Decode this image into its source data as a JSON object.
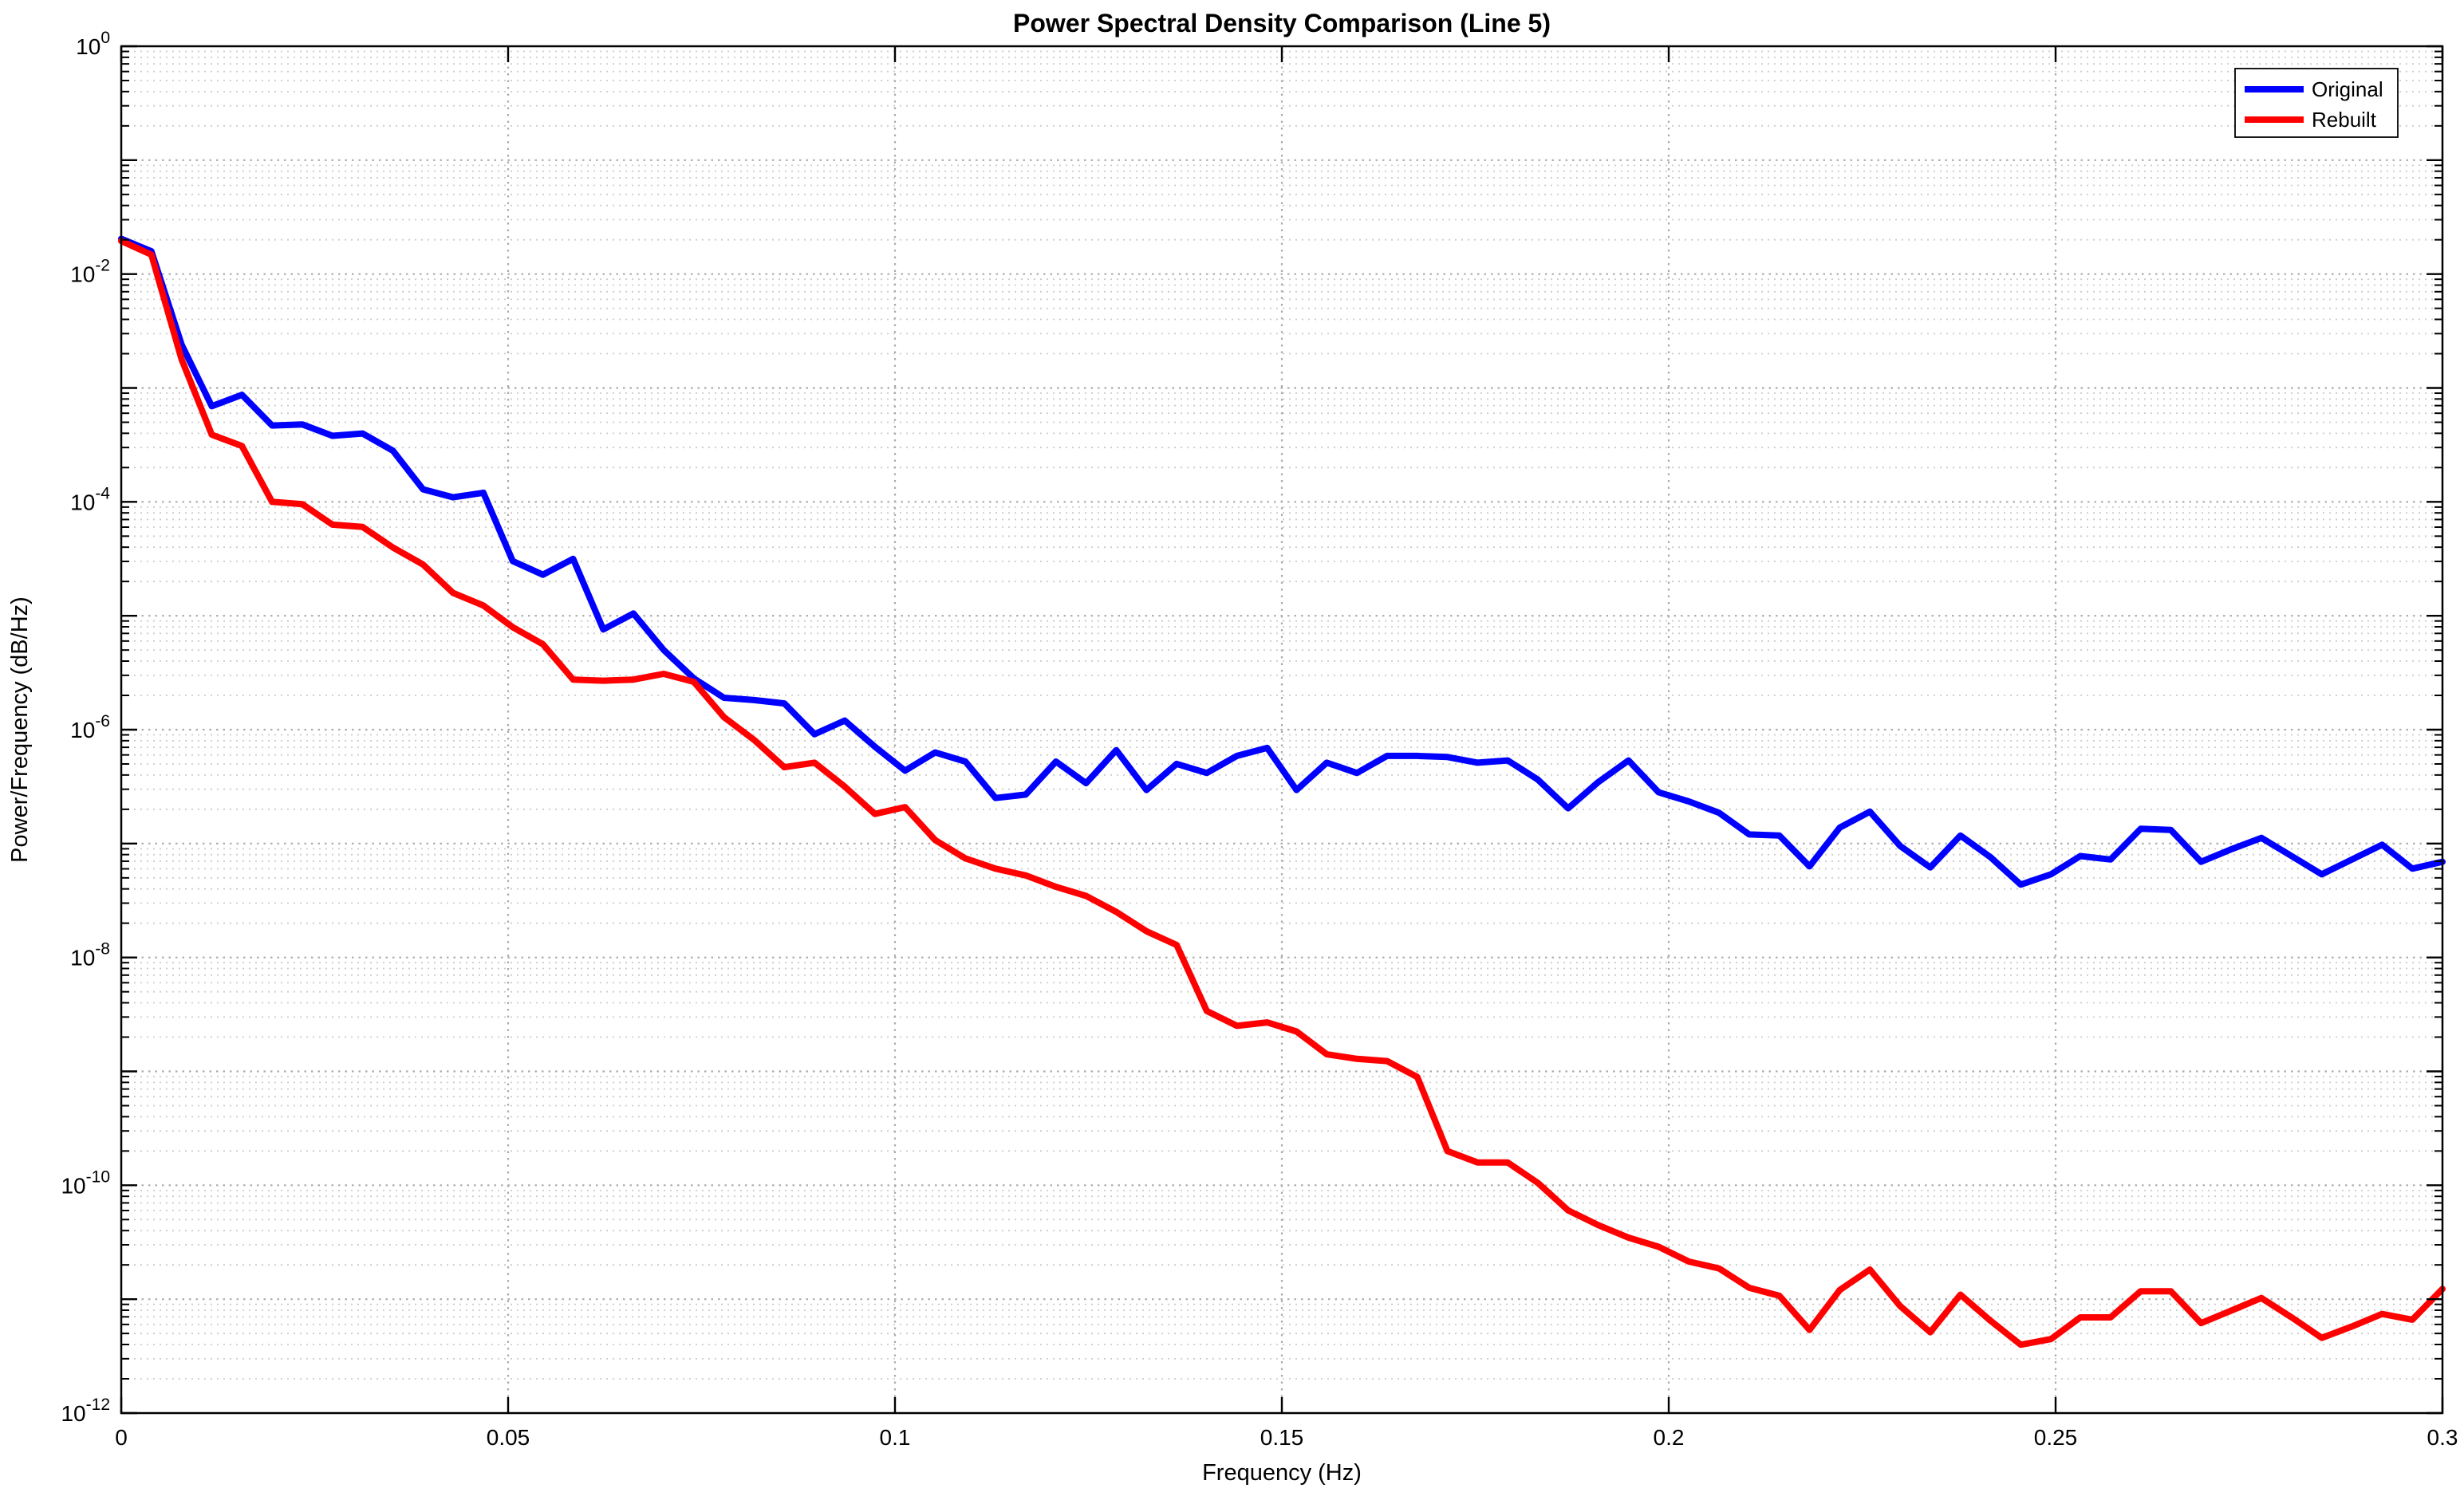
{
  "figure": {
    "title": "Power Spectral Density Comparison (Line 5)",
    "xlabel": "Frequency (Hz)",
    "ylabel": "Power/Frequency (dB/Hz)",
    "background_color": "#ffffff",
    "axes_color": "#000000",
    "major_grid_color": "#ababab",
    "minor_grid_color": "#cccccc"
  },
  "legend": {
    "position": "top-right",
    "border_color": "#000000",
    "background_color": "#ffffff",
    "entries": [
      {
        "label": "Original",
        "color": "#0000ff"
      },
      {
        "label": "Rebuilt",
        "color": "#ff0000"
      }
    ]
  },
  "chart_data": {
    "type": "line",
    "title": "Power Spectral Density Comparison (Line 5)",
    "xlabel": "Frequency (Hz)",
    "ylabel": "Power/Frequency (dB/Hz)",
    "x_scale": "linear",
    "y_scale": "log10",
    "xlim": [
      0,
      0.3
    ],
    "ylim_exponents": [
      -12,
      0
    ],
    "x_tick_values": [
      0,
      0.05,
      0.1,
      0.15,
      0.2,
      0.25,
      0.3
    ],
    "x_tick_labels": [
      "0",
      "0.05",
      "0.1",
      "0.15",
      "0.2",
      "0.25",
      "0.3"
    ],
    "y_labeled_exponents": [
      0,
      -2,
      -4,
      -6,
      -8,
      -10,
      -12
    ],
    "grid": "major and minor, dotted, both axes",
    "legend_position": "top-right",
    "frequencies": [
      0.0,
      0.0039,
      0.0078,
      0.0117,
      0.0156,
      0.0195,
      0.0234,
      0.0273,
      0.0312,
      0.0351,
      0.039,
      0.0429,
      0.0468,
      0.0506,
      0.0545,
      0.0584,
      0.0623,
      0.0662,
      0.0701,
      0.074,
      0.0779,
      0.0818,
      0.0857,
      0.0896,
      0.0935,
      0.0974,
      0.1013,
      0.1052,
      0.1091,
      0.113,
      0.1169,
      0.1208,
      0.1247,
      0.1286,
      0.1325,
      0.1364,
      0.1403,
      0.1442,
      0.1481,
      0.1519,
      0.1558,
      0.1597,
      0.1636,
      0.1675,
      0.1714,
      0.1753,
      0.1792,
      0.1831,
      0.187,
      0.1909,
      0.1948,
      0.1987,
      0.2026,
      0.2065,
      0.2104,
      0.2143,
      0.2182,
      0.2221,
      0.226,
      0.2299,
      0.2338,
      0.2377,
      0.2416,
      0.2455,
      0.2494,
      0.2532,
      0.2571,
      0.261,
      0.2649,
      0.2688,
      0.2727,
      0.2766,
      0.2805,
      0.2844,
      0.2883,
      0.2922,
      0.2961,
      0.3
    ],
    "series": [
      {
        "name": "Original",
        "color": "#0000ff",
        "values_log10": [
          -1.69,
          -1.8,
          -2.62,
          -3.16,
          -3.06,
          -3.33,
          -3.32,
          -3.42,
          -3.4,
          -3.55,
          -3.89,
          -3.96,
          -3.92,
          -4.52,
          -4.64,
          -4.5,
          -5.12,
          -4.98,
          -5.3,
          -5.55,
          -5.72,
          -5.74,
          -5.77,
          -6.04,
          -5.92,
          -6.15,
          -6.36,
          -6.2,
          -6.28,
          -6.6,
          -6.57,
          -6.28,
          -6.47,
          -6.18,
          -6.53,
          -6.3,
          -6.38,
          -6.23,
          -6.16,
          -6.53,
          -6.29,
          -6.38,
          -6.23,
          -6.23,
          -6.24,
          -6.29,
          -6.27,
          -6.44,
          -6.69,
          -6.46,
          -6.27,
          -6.55,
          -6.63,
          -6.73,
          -6.92,
          -6.93,
          -7.2,
          -6.86,
          -6.72,
          -7.02,
          -7.21,
          -6.93,
          -7.12,
          -7.36,
          -7.27,
          -7.11,
          -7.14,
          -6.87,
          -6.88,
          -7.16,
          -7.05,
          -6.95,
          -7.11,
          -7.27,
          -7.14,
          -7.01,
          -7.22,
          -7.16
        ]
      },
      {
        "name": "Rebuilt",
        "color": "#ff0000",
        "values_log10": [
          -1.71,
          -1.83,
          -2.75,
          -3.41,
          -3.51,
          -4.0,
          -4.02,
          -4.2,
          -4.22,
          -4.4,
          -4.55,
          -4.8,
          -4.91,
          -5.1,
          -5.25,
          -5.56,
          -5.57,
          -5.56,
          -5.51,
          -5.58,
          -5.89,
          -6.09,
          -6.33,
          -6.29,
          -6.5,
          -6.74,
          -6.68,
          -6.97,
          -7.13,
          -7.22,
          -7.28,
          -7.38,
          -7.46,
          -7.6,
          -7.77,
          -7.89,
          -8.47,
          -8.6,
          -8.57,
          -8.65,
          -8.85,
          -8.89,
          -8.91,
          -9.05,
          -9.7,
          -9.8,
          -9.8,
          -9.98,
          -10.22,
          -10.35,
          -10.46,
          -10.54,
          -10.67,
          -10.73,
          -10.9,
          -10.97,
          -11.27,
          -10.92,
          -10.74,
          -11.06,
          -11.29,
          -10.96,
          -11.19,
          -11.4,
          -11.35,
          -11.16,
          -11.16,
          -10.93,
          -10.93,
          -11.21,
          -11.1,
          -10.99,
          -11.16,
          -11.34,
          -11.24,
          -11.13,
          -11.18,
          -10.91
        ]
      }
    ]
  }
}
